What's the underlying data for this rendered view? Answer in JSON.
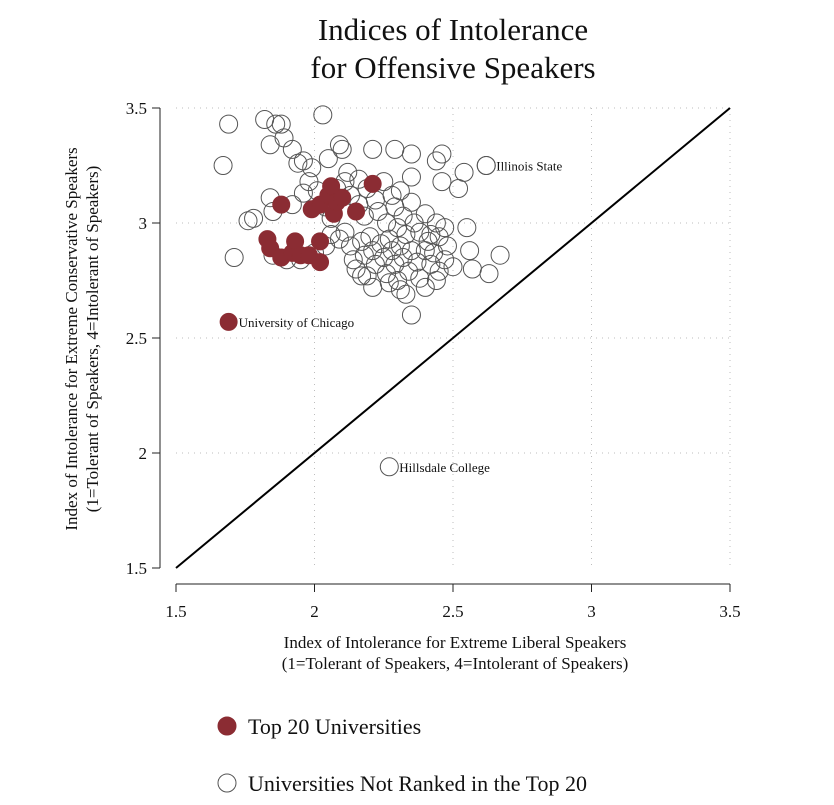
{
  "chart_data": {
    "type": "scatter",
    "title": [
      "Indices of Intolerance",
      "for Offensive Speakers"
    ],
    "xlabel": [
      "Index of Intolerance for Extreme Liberal Speakers",
      "(1=Tolerant of Speakers, 4=Intolerant of Speakers)"
    ],
    "ylabel": [
      "Index of Intolerance for Extreme Conservative Speakers",
      "(1=Tolerant of Speakers, 4=Intolerant of Speakers)"
    ],
    "xlim": [
      1.5,
      3.5
    ],
    "ylim": [
      1.5,
      3.5
    ],
    "xticks": [
      1.5,
      2,
      2.5,
      3,
      3.5
    ],
    "yticks": [
      1.5,
      2,
      2.5,
      3,
      3.5
    ],
    "xtick_labels": [
      "1.5",
      "2",
      "2.5",
      "3",
      "3.5"
    ],
    "ytick_labels": [
      "1.5",
      "2",
      "2.5",
      "3",
      "3.5"
    ],
    "grid": true,
    "reference_line": {
      "from": [
        1.5,
        1.5
      ],
      "to": [
        3.5,
        3.5
      ]
    },
    "colors": {
      "top20": "#8b2c33",
      "other_stroke": "#555555",
      "line": "#000000",
      "grid": "#bdbdbd"
    },
    "series": [
      {
        "name": "Top 20 Universities",
        "filled": true,
        "points": [
          [
            1.69,
            2.57
          ],
          [
            1.83,
            2.93
          ],
          [
            1.84,
            2.89
          ],
          [
            1.88,
            2.85
          ],
          [
            1.92,
            2.87
          ],
          [
            1.93,
            2.92
          ],
          [
            1.95,
            2.86
          ],
          [
            1.98,
            2.86
          ],
          [
            2.02,
            2.83
          ],
          [
            2.02,
            2.92
          ],
          [
            1.88,
            3.08
          ],
          [
            1.99,
            3.06
          ],
          [
            2.02,
            3.08
          ],
          [
            2.05,
            3.12
          ],
          [
            2.06,
            3.16
          ],
          [
            2.07,
            3.04
          ],
          [
            2.08,
            3.09
          ],
          [
            2.1,
            3.11
          ],
          [
            2.15,
            3.05
          ],
          [
            2.21,
            3.17
          ]
        ]
      },
      {
        "name": "Universities Not Ranked in the Top 20",
        "filled": false,
        "points": [
          [
            1.69,
            3.43
          ],
          [
            1.82,
            3.45
          ],
          [
            1.86,
            3.43
          ],
          [
            1.88,
            3.43
          ],
          [
            2.03,
            3.47
          ],
          [
            1.67,
            3.25
          ],
          [
            1.84,
            3.34
          ],
          [
            1.89,
            3.37
          ],
          [
            1.92,
            3.32
          ],
          [
            1.94,
            3.26
          ],
          [
            1.96,
            3.27
          ],
          [
            1.99,
            3.24
          ],
          [
            2.09,
            3.34
          ],
          [
            2.1,
            3.32
          ],
          [
            2.21,
            3.32
          ],
          [
            2.29,
            3.32
          ],
          [
            2.35,
            3.3
          ],
          [
            2.44,
            3.27
          ],
          [
            2.46,
            3.3
          ],
          [
            2.54,
            3.22
          ],
          [
            2.35,
            3.2
          ],
          [
            2.46,
            3.18
          ],
          [
            2.52,
            3.15
          ],
          [
            2.62,
            3.25
          ],
          [
            2.05,
            3.28
          ],
          [
            2.12,
            3.22
          ],
          [
            2.16,
            3.19
          ],
          [
            1.76,
            3.01
          ],
          [
            1.78,
            3.02
          ],
          [
            1.84,
            3.11
          ],
          [
            1.85,
            3.05
          ],
          [
            1.92,
            3.08
          ],
          [
            1.96,
            3.13
          ],
          [
            1.98,
            3.18
          ],
          [
            2.01,
            3.14
          ],
          [
            2.04,
            3.07
          ],
          [
            2.06,
            3.02
          ],
          [
            2.08,
            3.15
          ],
          [
            2.11,
            3.18
          ],
          [
            2.13,
            3.12
          ],
          [
            2.16,
            3.08
          ],
          [
            2.18,
            3.03
          ],
          [
            2.19,
            3.15
          ],
          [
            2.22,
            3.1
          ],
          [
            2.23,
            3.05
          ],
          [
            2.25,
            3.18
          ],
          [
            2.26,
            3.0
          ],
          [
            2.28,
            3.12
          ],
          [
            2.29,
            3.07
          ],
          [
            2.3,
            2.98
          ],
          [
            2.31,
            3.14
          ],
          [
            2.32,
            3.03
          ],
          [
            2.33,
            2.95
          ],
          [
            2.35,
            3.09
          ],
          [
            2.36,
            3.0
          ],
          [
            2.38,
            2.96
          ],
          [
            2.4,
            3.04
          ],
          [
            2.41,
            2.92
          ],
          [
            2.42,
            2.95
          ],
          [
            2.44,
            3.0
          ],
          [
            2.45,
            2.94
          ],
          [
            2.47,
            2.98
          ],
          [
            2.55,
            2.98
          ],
          [
            2.48,
            2.9
          ],
          [
            1.71,
            2.85
          ],
          [
            1.85,
            2.86
          ],
          [
            1.9,
            2.84
          ],
          [
            1.95,
            2.84
          ],
          [
            2.0,
            2.87
          ],
          [
            2.04,
            2.9
          ],
          [
            2.06,
            2.95
          ],
          [
            2.09,
            2.93
          ],
          [
            2.11,
            2.96
          ],
          [
            2.13,
            2.9
          ],
          [
            2.14,
            2.84
          ],
          [
            2.15,
            2.8
          ],
          [
            2.17,
            2.92
          ],
          [
            2.18,
            2.86
          ],
          [
            2.19,
            2.77
          ],
          [
            2.2,
            2.94
          ],
          [
            2.21,
            2.88
          ],
          [
            2.22,
            2.82
          ],
          [
            2.24,
            2.91
          ],
          [
            2.25,
            2.85
          ],
          [
            2.26,
            2.78
          ],
          [
            2.27,
            2.93
          ],
          [
            2.28,
            2.88
          ],
          [
            2.29,
            2.82
          ],
          [
            2.3,
            2.75
          ],
          [
            2.31,
            2.9
          ],
          [
            2.32,
            2.85
          ],
          [
            2.34,
            2.79
          ],
          [
            2.35,
            2.88
          ],
          [
            2.37,
            2.83
          ],
          [
            2.38,
            2.76
          ],
          [
            2.4,
            2.88
          ],
          [
            2.42,
            2.82
          ],
          [
            2.43,
            2.87
          ],
          [
            2.45,
            2.79
          ],
          [
            2.47,
            2.84
          ],
          [
            2.5,
            2.81
          ],
          [
            2.56,
            2.88
          ],
          [
            2.57,
            2.8
          ],
          [
            2.63,
            2.78
          ],
          [
            2.67,
            2.86
          ],
          [
            2.21,
            2.72
          ],
          [
            2.27,
            2.74
          ],
          [
            2.31,
            2.71
          ],
          [
            2.33,
            2.69
          ],
          [
            2.35,
            2.6
          ],
          [
            2.4,
            2.72
          ],
          [
            2.44,
            2.75
          ],
          [
            2.17,
            2.77
          ],
          [
            2.62,
            3.25
          ],
          [
            2.27,
            1.94
          ]
        ]
      }
    ],
    "annotations": [
      {
        "text": "Illinois State",
        "x": 2.62,
        "y": 3.25
      },
      {
        "text": "University of Chicago",
        "x": 1.69,
        "y": 2.57
      },
      {
        "text": "Hillsdale College",
        "x": 2.27,
        "y": 1.94
      }
    ],
    "legend": {
      "placement": "bottom",
      "entries": [
        "Top 20 Universities",
        "Universities Not Ranked in the Top 20"
      ]
    }
  }
}
